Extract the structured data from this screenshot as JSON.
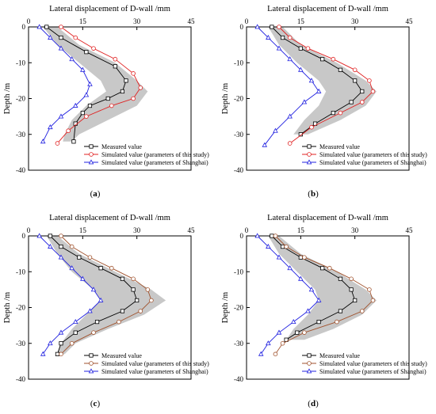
{
  "figure": {
    "panels": [
      {
        "label_prefix": "(",
        "label_letter": "a",
        "label_suffix": ")"
      },
      {
        "label_prefix": "(",
        "label_letter": "b",
        "label_suffix": ")"
      },
      {
        "label_prefix": "(",
        "label_letter": "c",
        "label_suffix": ")"
      },
      {
        "label_prefix": "(",
        "label_letter": "d",
        "label_suffix": ")"
      }
    ]
  },
  "chart_data": [
    {
      "type": "line",
      "panel": "a",
      "title": "Lateral displacement of D-wall /mm",
      "xlabel": "",
      "ylabel": "Depth /m",
      "xlim": [
        0,
        45
      ],
      "ylim": [
        -40,
        0
      ],
      "xticks": [
        0,
        15,
        30,
        45
      ],
      "yticks": [
        0,
        -10,
        -20,
        -30,
        -40
      ],
      "legend_position": "bottom-right",
      "band": {
        "depth": [
          0,
          -5,
          -10,
          -15,
          -18,
          -22,
          -26,
          -30,
          -32
        ],
        "lower": [
          4,
          8,
          14,
          20,
          21.5,
          16,
          12,
          10,
          9.5
        ],
        "upper": [
          8,
          14,
          24,
          30,
          33,
          30,
          22,
          14,
          12
        ],
        "color": "#c8c8c8"
      },
      "series": [
        {
          "name": "Measured value",
          "color": "#000000",
          "marker": "square",
          "x": [
            5,
            9,
            16,
            24,
            27,
            26,
            22,
            17,
            15,
            13,
            12.5
          ],
          "y": [
            0,
            -3,
            -7,
            -11,
            -15,
            -18,
            -20,
            -22,
            -24,
            -27,
            -32
          ]
        },
        {
          "name": "Simulated value (parameters of this study)",
          "color": "#e02020",
          "marker": "circle",
          "x": [
            9,
            13,
            18,
            24,
            29,
            31,
            29,
            23,
            16,
            11,
            8
          ],
          "y": [
            0,
            -3,
            -6,
            -9,
            -13,
            -17,
            -20,
            -22,
            -25,
            -29,
            -32.5
          ]
        },
        {
          "name": "Simulated value (parameters of Shanghai)",
          "color": "#2020e0",
          "marker": "triangle",
          "x": [
            3,
            6,
            9,
            12,
            15,
            17,
            16,
            13,
            9,
            6,
            4
          ],
          "y": [
            0,
            -3,
            -6,
            -9,
            -12,
            -16,
            -19,
            -22,
            -25,
            -28,
            -32
          ]
        }
      ]
    },
    {
      "type": "line",
      "panel": "b",
      "title": "Lateral displacement of D-wall /mm",
      "xlabel": "",
      "ylabel": "Depth /m",
      "xlim": [
        0,
        45
      ],
      "ylim": [
        -40,
        0
      ],
      "xticks": [
        0,
        15,
        30,
        45
      ],
      "yticks": [
        0,
        -10,
        -20,
        -30,
        -40
      ],
      "legend_position": "bottom-right",
      "band": {
        "depth": [
          0,
          -5,
          -10,
          -15,
          -18,
          -22,
          -26,
          -30
        ],
        "lower": [
          6,
          9,
          14,
          20,
          22,
          20,
          16,
          13
        ],
        "upper": [
          10,
          15,
          25,
          33,
          36,
          33,
          26,
          17
        ],
        "color": "#c8c8c8"
      },
      "series": [
        {
          "name": "Measured value",
          "color": "#000000",
          "marker": "square",
          "x": [
            7,
            10,
            15,
            21,
            26,
            30,
            32,
            29,
            24,
            19,
            15
          ],
          "y": [
            0,
            -3,
            -6,
            -9,
            -12,
            -15,
            -18,
            -21,
            -24,
            -27,
            -30
          ]
        },
        {
          "name": "Simulated value (parameters of this study)",
          "color": "#e02020",
          "marker": "circle",
          "x": [
            9,
            12,
            17,
            24,
            30,
            34,
            35,
            32,
            26,
            18,
            12
          ],
          "y": [
            0,
            -3,
            -6,
            -9,
            -12,
            -15,
            -18,
            -21,
            -24,
            -28,
            -32.5
          ]
        },
        {
          "name": "Simulated value (parameters of Shanghai)",
          "color": "#2020e0",
          "marker": "triangle",
          "x": [
            3,
            6,
            9,
            12,
            15,
            18,
            20,
            16,
            12,
            8,
            5
          ],
          "y": [
            0,
            -3,
            -6,
            -9,
            -12,
            -15,
            -18,
            -21,
            -25,
            -29,
            -33
          ]
        }
      ]
    },
    {
      "type": "line",
      "panel": "c",
      "title": "Lateral displacement of D-wall /mm",
      "xlabel": "",
      "ylabel": "Depth /m",
      "xlim": [
        0,
        45
      ],
      "ylim": [
        -40,
        0
      ],
      "xticks": [
        0,
        15,
        30,
        45
      ],
      "yticks": [
        0,
        -10,
        -20,
        -30,
        -40
      ],
      "legend_position": "bottom-right",
      "band": {
        "depth": [
          0,
          -5,
          -10,
          -15,
          -18,
          -22,
          -26,
          -30,
          -33
        ],
        "lower": [
          5,
          8,
          12,
          18,
          20,
          16,
          12,
          9,
          8
        ],
        "upper": [
          8,
          14,
          24,
          34,
          38,
          32,
          22,
          13,
          10
        ],
        "color": "#c8c8c8"
      },
      "series": [
        {
          "name": "Measured value",
          "color": "#000000",
          "marker": "square",
          "x": [
            6,
            9,
            14,
            20,
            26,
            29,
            30,
            26,
            19,
            13,
            9,
            8
          ],
          "y": [
            0,
            -3,
            -6,
            -9,
            -12,
            -15,
            -18,
            -21,
            -24,
            -27,
            -30,
            -33
          ]
        },
        {
          "name": "Simulated value (parameters of this study)",
          "color": "#a0522d",
          "marker": "circle",
          "x": [
            9,
            12,
            17,
            23,
            29,
            33,
            34,
            31,
            25,
            18,
            12,
            9
          ],
          "y": [
            0,
            -3,
            -6,
            -9,
            -12,
            -15,
            -18,
            -21,
            -24,
            -27,
            -30,
            -33
          ]
        },
        {
          "name": "Simulated value (parameters of Shanghai)",
          "color": "#2020e0",
          "marker": "triangle",
          "x": [
            3,
            6,
            9,
            12,
            15,
            18,
            20,
            17,
            13,
            9,
            6,
            4
          ],
          "y": [
            0,
            -3,
            -6,
            -9,
            -12,
            -15,
            -18,
            -21,
            -24,
            -27,
            -30,
            -33
          ]
        }
      ]
    },
    {
      "type": "line",
      "panel": "d",
      "title": "Lateral displacement of D-wall /mm",
      "xlabel": "",
      "ylabel": "Depth /m",
      "xlim": [
        0,
        45
      ],
      "ylim": [
        -40,
        0
      ],
      "xticks": [
        0,
        15,
        30,
        45
      ],
      "yticks": [
        0,
        -10,
        -20,
        -30,
        -40
      ],
      "legend_position": "bottom-right",
      "band": {
        "depth": [
          0,
          -5,
          -10,
          -15,
          -18,
          -22,
          -26,
          -29
        ],
        "lower": [
          6,
          9,
          14,
          19,
          20,
          17,
          13,
          11
        ],
        "upper": [
          9,
          15,
          25,
          33,
          36,
          32,
          24,
          16
        ],
        "color": "#c8c8c8"
      },
      "series": [
        {
          "name": "Measured value",
          "color": "#000000",
          "marker": "square",
          "x": [
            7,
            10,
            15,
            21,
            26,
            29,
            30,
            26,
            20,
            14,
            11
          ],
          "y": [
            0,
            -3,
            -6,
            -9,
            -12,
            -15,
            -18,
            -21,
            -24,
            -27,
            -29
          ]
        },
        {
          "name": "Simulated value (parameters of this study)",
          "color": "#a0522d",
          "marker": "circle",
          "x": [
            8,
            11,
            16,
            23,
            29,
            34,
            35,
            32,
            25,
            16,
            10,
            8
          ],
          "y": [
            0,
            -3,
            -6,
            -9,
            -12,
            -15,
            -18,
            -21,
            -24,
            -27,
            -30,
            -33
          ]
        },
        {
          "name": "Simulated value (parameters of Shanghai)",
          "color": "#2020e0",
          "marker": "triangle",
          "x": [
            3,
            6,
            9,
            12,
            15,
            18,
            20,
            17,
            13,
            9,
            6,
            4
          ],
          "y": [
            0,
            -3,
            -6,
            -9,
            -12,
            -15,
            -18,
            -21,
            -24,
            -27,
            -30,
            -33
          ]
        }
      ]
    }
  ]
}
